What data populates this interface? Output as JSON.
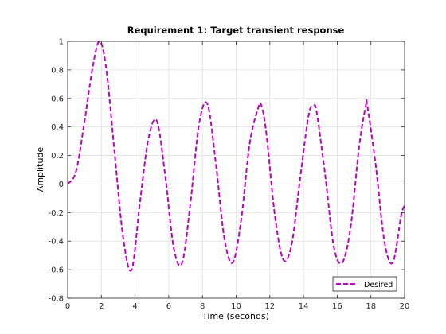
{
  "chart_data": {
    "type": "line",
    "title": "Requirement 1: Target transient response",
    "xlabel": "Time (seconds)",
    "ylabel": "Amplitude",
    "xlim": [
      0,
      20
    ],
    "ylim": [
      -0.8,
      1
    ],
    "xticks": [
      0,
      2,
      4,
      6,
      8,
      10,
      12,
      14,
      16,
      18,
      20
    ],
    "yticks": [
      -0.8,
      -0.6,
      -0.4,
      -0.2,
      0,
      0.2,
      0.4,
      0.6,
      0.8,
      1
    ],
    "xtick_labels": [
      "0",
      "2",
      "4",
      "6",
      "8",
      "10",
      "12",
      "14",
      "16",
      "18",
      "20"
    ],
    "ytick_labels": [
      "-0.8",
      "-0.6",
      "-0.4",
      "-0.2",
      "0",
      "0.2",
      "0.4",
      "0.6",
      "0.8",
      "1"
    ],
    "grid": true,
    "legend_position": "bottom-right",
    "series": [
      {
        "name": "Desired",
        "color": "#bf00bf",
        "line_style": "dashed",
        "x": [
          0,
          0.5,
          1.0,
          1.5,
          1.9,
          2.3,
          2.8,
          3.3,
          3.8,
          4.3,
          4.8,
          5.3,
          5.8,
          6.3,
          6.8,
          7.3,
          7.8,
          8.3,
          8.8,
          9.3,
          9.8,
          10.3,
          10.8,
          11.3,
          11.5,
          11.8,
          12.3,
          12.8,
          13.3,
          13.8,
          14.3,
          14.6,
          14.8,
          15.3,
          15.8,
          16.3,
          16.8,
          17.3,
          17.7,
          17.8,
          18.3,
          18.8,
          19.3,
          19.8,
          20
        ],
        "y": [
          0,
          0.09,
          0.44,
          0.83,
          1.0,
          0.8,
          0.2,
          -0.38,
          -0.6,
          -0.12,
          0.32,
          0.44,
          0.05,
          -0.45,
          -0.55,
          -0.12,
          0.42,
          0.56,
          0.14,
          -0.38,
          -0.55,
          -0.25,
          0.28,
          0.53,
          0.55,
          0.35,
          -0.22,
          -0.53,
          -0.42,
          0.04,
          0.48,
          0.55,
          0.49,
          0.05,
          -0.44,
          -0.55,
          -0.3,
          0.26,
          0.55,
          0.54,
          0.12,
          -0.4,
          -0.55,
          -0.22,
          -0.15
        ]
      }
    ]
  }
}
